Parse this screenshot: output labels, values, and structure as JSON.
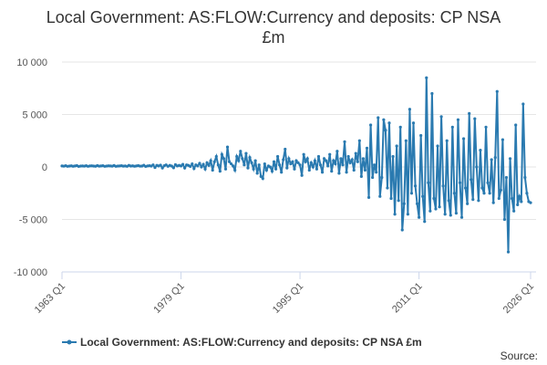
{
  "chart_data": {
    "type": "line",
    "title": "Local Government: AS:FLOW:Currency and deposits: CP NSA £m",
    "source": "Source:",
    "categories": [
      "1963 Q1",
      null,
      null,
      null,
      null,
      null,
      null,
      null,
      null,
      null,
      null,
      null,
      null,
      null,
      null,
      null,
      null,
      null,
      null,
      null,
      null,
      null,
      null,
      null,
      null,
      null,
      null,
      null,
      null,
      null,
      null,
      null,
      null,
      null,
      null,
      null,
      null,
      null,
      null,
      null,
      null,
      null,
      null,
      null,
      null,
      null,
      null,
      null,
      null,
      null,
      null,
      null,
      null,
      null,
      null,
      null,
      null,
      null,
      null,
      null,
      null,
      null,
      null,
      null,
      "1979 Q1",
      null,
      null,
      null,
      null,
      null,
      null,
      null,
      null,
      null,
      null,
      null,
      null,
      null,
      null,
      null,
      null,
      null,
      null,
      null,
      null,
      null,
      null,
      null,
      null,
      null,
      null,
      null,
      null,
      null,
      null,
      null,
      null,
      null,
      null,
      null,
      null,
      null,
      null,
      null,
      null,
      null,
      null,
      null,
      null,
      null,
      null,
      null,
      null,
      null,
      null,
      null,
      null,
      null,
      null,
      null,
      null,
      null,
      null,
      null,
      null,
      null,
      null,
      null,
      "1995 Q1",
      null,
      null,
      null,
      null,
      null,
      null,
      null,
      null,
      null,
      null,
      null,
      null,
      null,
      null,
      null,
      null,
      null,
      null,
      null,
      null,
      null,
      null,
      null,
      null,
      null,
      null,
      null,
      null,
      null,
      null,
      null,
      null,
      null,
      null,
      null,
      null,
      null,
      null,
      null,
      null,
      null,
      null,
      null,
      null,
      null,
      null,
      null,
      null,
      null,
      null,
      null,
      null,
      null,
      null,
      null,
      null,
      null,
      null,
      null,
      null,
      null,
      null,
      null,
      "2011 Q1",
      null,
      null,
      null,
      null,
      null,
      null,
      null,
      null,
      null,
      null,
      null,
      null,
      null,
      null,
      null,
      null,
      null,
      null,
      null,
      null,
      null,
      null,
      null,
      null,
      null,
      null,
      null,
      null,
      null,
      null,
      null,
      null,
      null,
      null,
      null,
      null,
      null,
      null,
      null,
      null,
      null,
      null,
      null,
      null,
      null,
      null,
      null,
      null,
      null,
      null,
      null,
      null,
      null,
      null,
      null,
      null,
      null,
      null,
      null,
      "2026 Q1"
    ],
    "series": [
      {
        "name": "Local Government: AS:FLOW:Currency and deposits: CP NSA £m",
        "color": "#2a7ab0",
        "values": [
          100,
          80,
          120,
          60,
          90,
          110,
          70,
          100,
          130,
          50,
          90,
          100,
          80,
          120,
          60,
          100,
          110,
          90,
          70,
          130,
          80,
          100,
          120,
          60,
          90,
          110,
          100,
          80,
          140,
          60,
          90,
          100,
          120,
          80,
          100,
          60,
          150,
          90,
          110,
          70,
          100,
          130,
          80,
          90,
          160,
          50,
          100,
          120,
          90,
          200,
          -50,
          150,
          100,
          180,
          -100,
          120,
          200,
          60,
          150,
          90,
          -80,
          220,
          100,
          150,
          100,
          250,
          -100,
          200,
          150,
          50,
          300,
          -150,
          200,
          100,
          350,
          0,
          250,
          -200,
          400,
          150,
          600,
          -300,
          500,
          1000,
          200,
          -400,
          1200,
          800,
          -200,
          1900,
          500,
          300,
          100,
          -300,
          1000,
          600,
          1500,
          800,
          200,
          1300,
          -100,
          900,
          400,
          -200,
          600,
          -600,
          200,
          -900,
          -1100,
          300,
          -300,
          100,
          0,
          -400,
          500,
          -200,
          1000,
          200,
          -500,
          700,
          1700,
          -100,
          800,
          300,
          500,
          -200,
          600,
          400,
          200,
          -800,
          1200,
          500,
          800,
          -300,
          400,
          0,
          600,
          -200,
          1000,
          200,
          -500,
          800,
          600,
          100,
          1200,
          -400,
          600,
          300,
          1500,
          -600,
          800,
          200,
          2400,
          -500,
          1000,
          400,
          700,
          -300,
          1300,
          500,
          2500,
          -900,
          800,
          -300,
          1800,
          -2900,
          4000,
          -1000,
          200,
          -500,
          4700,
          -2800,
          -1000,
          4500,
          3500,
          -2000,
          4200,
          -3000,
          1000,
          -4500,
          2000,
          -3200,
          3800,
          -6000,
          -3500,
          2500,
          -4500,
          5500,
          -2500,
          4200,
          -1800,
          -3500,
          -4800,
          3000,
          -2800,
          -5200,
          8500,
          -1500,
          -4200,
          7000,
          -3000,
          -4000,
          2000,
          -3800,
          4800,
          -1800,
          -4500,
          2500,
          -3200,
          -4600,
          3800,
          -2500,
          -4400,
          4500,
          -1500,
          -4800,
          2700,
          -2000,
          -3500,
          5100,
          -1200,
          -3100,
          4600,
          0,
          -3200,
          1600,
          -2000,
          -2500,
          3800,
          -1500,
          -2500,
          700,
          -3400,
          900,
          7200,
          -3000,
          -2200,
          2600,
          -5000,
          -1000,
          -8100,
          800,
          -3000,
          -4200,
          4000,
          -3600,
          -2800,
          -3300,
          6000,
          -1000,
          -2500,
          -3300,
          -3400
        ]
      }
    ],
    "ylim": [
      -10000,
      10000
    ],
    "yticks": [
      {
        "value": -10000,
        "label": "-10 000"
      },
      {
        "value": -5000,
        "label": "-5 000"
      },
      0,
      {
        "value": 5000,
        "label": "5 000"
      },
      {
        "value": 10000,
        "label": "10 000"
      }
    ],
    "grid": true
  }
}
